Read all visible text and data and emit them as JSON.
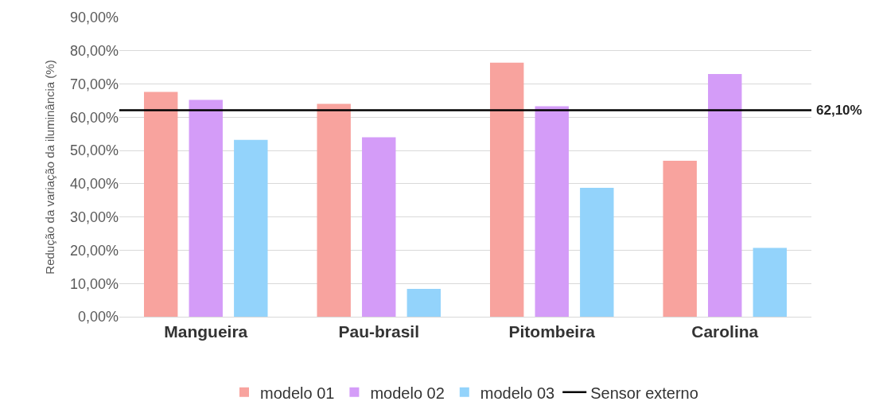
{
  "chart_data": {
    "type": "bar",
    "ylabel": "Redução da variação da iluminância (%)",
    "categories": [
      "Mangueira",
      "Pau-brasil",
      "Pitombeira",
      "Carolina"
    ],
    "series": [
      {
        "name": "modelo 01",
        "color": "#f8a39e",
        "values": [
          67.6,
          64.0,
          76.4,
          46.9
        ]
      },
      {
        "name": "modelo 02",
        "color": "#d49cf8",
        "values": [
          65.2,
          54.0,
          63.3,
          73.0
        ]
      },
      {
        "name": "modelo 03",
        "color": "#93d3fb",
        "values": [
          53.2,
          8.4,
          38.8,
          20.7
        ]
      }
    ],
    "ylim": [
      0,
      90
    ],
    "yticks": [
      {
        "value": 0,
        "label": "0,00%"
      },
      {
        "value": 10,
        "label": "10,00%"
      },
      {
        "value": 20,
        "label": "20,00%"
      },
      {
        "value": 30,
        "label": "30,00%"
      },
      {
        "value": 40,
        "label": "40,00%"
      },
      {
        "value": 50,
        "label": "50,00%"
      },
      {
        "value": 60,
        "label": "60,00%"
      },
      {
        "value": 70,
        "label": "70,00%"
      },
      {
        "value": 80,
        "label": "80,00%"
      },
      {
        "value": 90,
        "label": "90,00%"
      }
    ],
    "ref_lines": [
      {
        "axis": "y",
        "value": 62.1,
        "label": "Sensor externo",
        "color": "#000000",
        "line_style": "solid"
      }
    ],
    "annotations": [
      "62,10%"
    ],
    "grid": "y",
    "legend": "bottom"
  }
}
